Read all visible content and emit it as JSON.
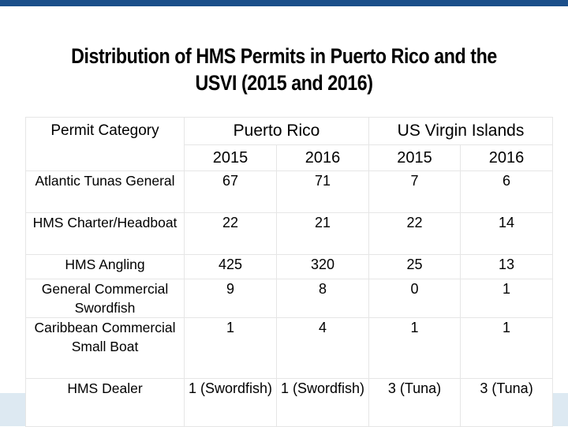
{
  "title": {
    "line1": "Distribution of HMS Permits in Puerto Rico and the",
    "line2": "USVI (2015 and 2016)"
  },
  "table": {
    "header_category": "Permit Category",
    "regions": [
      "Puerto Rico",
      "US Virgin Islands"
    ],
    "years": [
      "2015",
      "2016",
      "2015",
      "2016"
    ],
    "rows": [
      {
        "category": "Atlantic Tunas General",
        "values": [
          "67",
          "71",
          "7",
          "6"
        ]
      },
      {
        "category": "HMS Charter/Headboat",
        "values": [
          "22",
          "21",
          "22",
          "14"
        ]
      },
      {
        "category": "HMS Angling",
        "values": [
          "425",
          "320",
          "25",
          "13"
        ]
      },
      {
        "category": "General Commercial Swordfish",
        "values": [
          "9",
          "8",
          "0",
          "1"
        ]
      },
      {
        "category": "Caribbean Commercial Small Boat",
        "values": [
          "1",
          "4",
          "1",
          "1"
        ]
      },
      {
        "category": "HMS Dealer",
        "values": [
          "1 (Swordfish)",
          "1 (Swordfish)",
          "3 (Tuna)",
          "3 (Tuna)"
        ]
      }
    ]
  }
}
